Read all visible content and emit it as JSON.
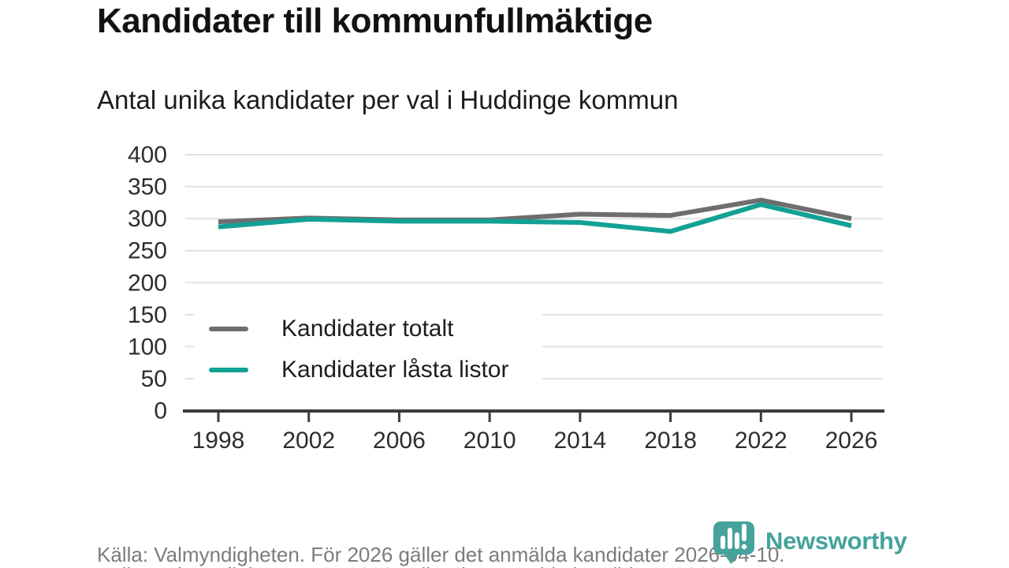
{
  "page": {
    "title": "Kandidater till kommunfullmäktige",
    "subtitle": "Antal unika kandidater per val i Huddinge kommun",
    "footer_note": "Källa: Valmyndigheten. För 2026 gäller det anmälda kandidater 2026-04-10.",
    "brand": {
      "name": "Newsworthy",
      "color": "#45a39c"
    }
  },
  "chart_data": {
    "type": "line",
    "title": "Kandidater till kommunfullmäktige",
    "subtitle": "Antal unika kandidater per val i Huddinge kommun",
    "x": [
      1998,
      2002,
      2006,
      2010,
      2014,
      2018,
      2022,
      2026
    ],
    "series": [
      {
        "name": "Kandidater totalt",
        "color": "#6e6e6e",
        "values": [
          295,
          301,
          298,
          298,
          307,
          305,
          329,
          300
        ]
      },
      {
        "name": "Kandidater låsta listor",
        "color": "#12a195",
        "values": [
          287,
          299,
          296,
          296,
          294,
          280,
          322,
          289
        ]
      }
    ],
    "ylim": [
      0,
      400
    ],
    "yticks": [
      0,
      50,
      100,
      150,
      200,
      250,
      300,
      350,
      400
    ],
    "grid": "horizontal",
    "legend_position": "inside-left",
    "gridline_color": "#e2e2e2",
    "axis_color": "#3b3b3b",
    "tick_label_color": "#2e2e2e"
  }
}
